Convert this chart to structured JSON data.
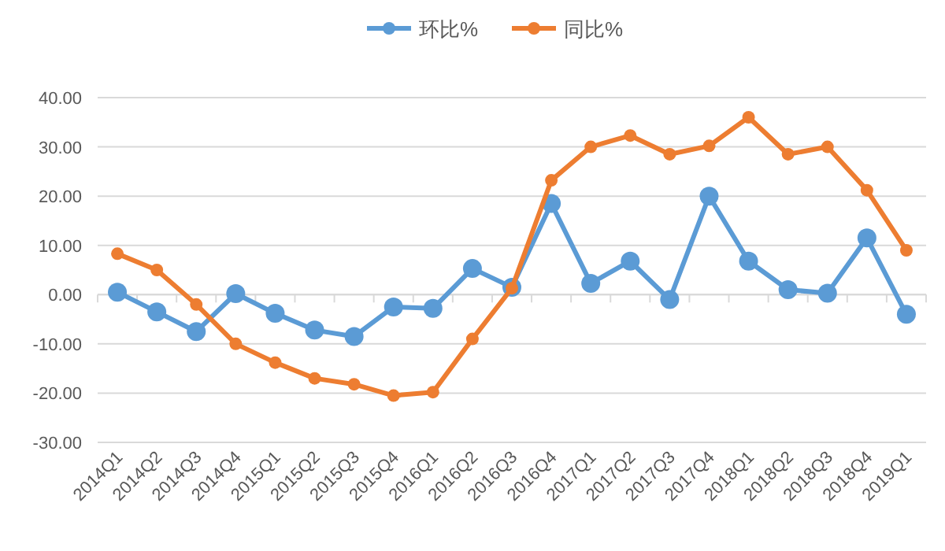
{
  "chart_data": {
    "type": "line",
    "categories": [
      "2014Q1",
      "2014Q2",
      "2014Q3",
      "2014Q4",
      "2015Q1",
      "2015Q2",
      "2015Q3",
      "2015Q4",
      "2016Q1",
      "2016Q2",
      "2016Q3",
      "2016Q4",
      "2017Q1",
      "2017Q2",
      "2017Q3",
      "2017Q4",
      "2018Q1",
      "2018Q2",
      "2018Q3",
      "2018Q4",
      "2019Q1"
    ],
    "series": [
      {
        "name": "环比%",
        "color": "#5b9bd5",
        "values": [
          0.5,
          -3.5,
          -7.5,
          0.2,
          -3.8,
          -7.2,
          -8.5,
          -2.5,
          -2.8,
          5.3,
          1.5,
          18.5,
          2.3,
          6.8,
          -1,
          20,
          6.8,
          1,
          0.3,
          11.5,
          -4
        ]
      },
      {
        "name": "同比%",
        "color": "#ed7d31",
        "values": [
          8.3,
          5,
          -2,
          -10,
          -13.8,
          -17,
          -18.2,
          -20.5,
          -19.8,
          -9,
          1.3,
          23.2,
          30,
          32.3,
          28.5,
          30.2,
          36,
          28.5,
          30,
          21.2,
          9
        ]
      }
    ],
    "ylim": [
      -30,
      40
    ],
    "yticks": [
      {
        "value": -30,
        "label": "-30.00"
      },
      {
        "value": -20,
        "label": "-20.00"
      },
      {
        "value": -10,
        "label": "-10.00"
      },
      {
        "value": 0,
        "label": "0.00"
      },
      {
        "value": 10,
        "label": "10.00"
      },
      {
        "value": 20,
        "label": "20.00"
      },
      {
        "value": 30,
        "label": "30.00"
      },
      {
        "value": 40,
        "label": "40.00"
      }
    ],
    "grid": "y",
    "legend": "top",
    "marker": "circle",
    "line_style": "solid"
  }
}
